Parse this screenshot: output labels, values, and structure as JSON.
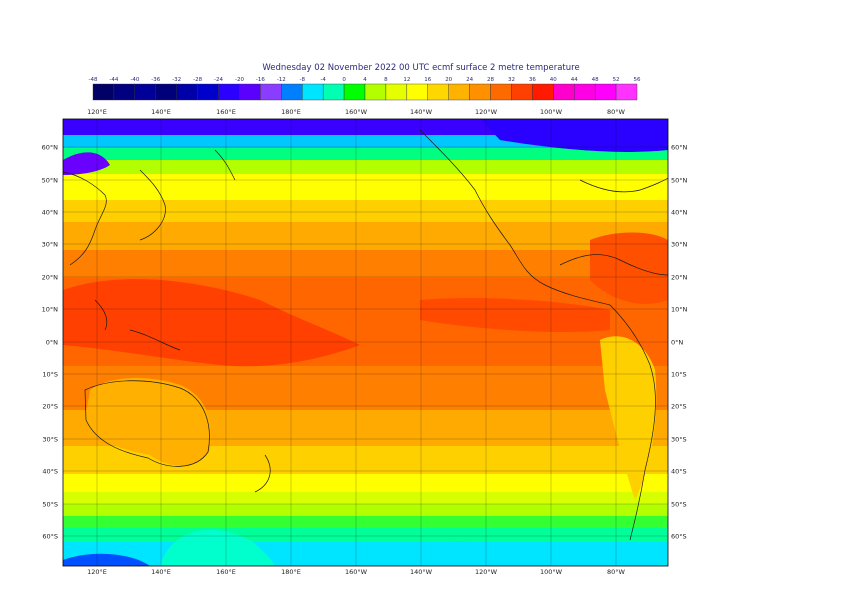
{
  "title": "Wednesday 02 November 2022 00 UTC ecmf surface  2 metre temperature",
  "colorbar": {
    "ticks": [
      "-48",
      "-44",
      "-40",
      "-36",
      "-32",
      "-28",
      "-24",
      "-20",
      "-16",
      "-12",
      "-8",
      "-4",
      "0",
      "4",
      "8",
      "12",
      "16",
      "20",
      "24",
      "28",
      "32",
      "36",
      "40",
      "44",
      "48",
      "52",
      "56"
    ],
    "colors": [
      "#000066",
      "#000080",
      "#000099",
      "#00007a",
      "#0000a8",
      "#0000cc",
      "#2b00ff",
      "#5a00ff",
      "#8a3cff",
      "#0080ff",
      "#00e5ff",
      "#00ffb3",
      "#00ff00",
      "#b3ff00",
      "#e6ff00",
      "#ffff00",
      "#ffd700",
      "#ffb300",
      "#ff9000",
      "#ff6a00",
      "#ff4000",
      "#ff1a00",
      "#ff00cc",
      "#ff00e6",
      "#ff00ff",
      "#ff33ff"
    ]
  },
  "axes": {
    "lon_labels": [
      "120°E",
      "140°E",
      "160°E",
      "180°E",
      "160°W",
      "140°W",
      "120°W",
      "100°W",
      "80°W"
    ],
    "lat_labels": [
      "60°N",
      "50°N",
      "40°N",
      "30°N",
      "20°N",
      "10°N",
      "0°N",
      "10°S",
      "20°S",
      "30°S",
      "40°S",
      "50°S",
      "60°S"
    ]
  }
}
